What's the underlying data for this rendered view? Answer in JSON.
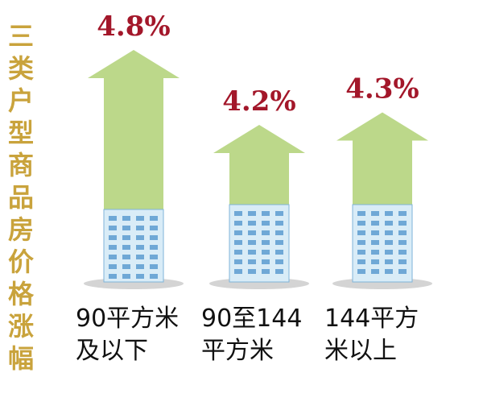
{
  "chart_data": {
    "type": "arrow-bar",
    "title": "三类户型商品房价格涨幅",
    "categories": [
      "90平方米\n及以下",
      "90至144\n平方米",
      "144平方\n米以上"
    ],
    "values": [
      4.8,
      4.2,
      4.3
    ],
    "value_labels": [
      "4.8%",
      "4.2%",
      "4.3%"
    ],
    "color": "#bcd88a"
  }
}
